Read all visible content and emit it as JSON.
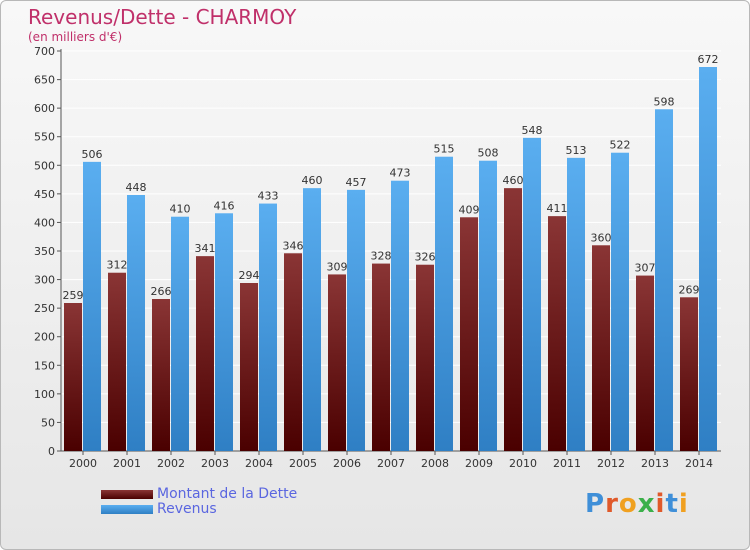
{
  "title": "Revenus/Dette - CHARMOY",
  "subtitle": "(en milliers d'€)",
  "logo": {
    "letters": [
      {
        "ch": "P",
        "color": "#3f8fd8"
      },
      {
        "ch": "r",
        "color": "#e0592a"
      },
      {
        "ch": "o",
        "color": "#f0a020"
      },
      {
        "ch": "x",
        "color": "#3bb04a"
      },
      {
        "ch": "i",
        "color": "#e0592a"
      },
      {
        "ch": "t",
        "color": "#3f8fd8"
      },
      {
        "ch": "i",
        "color": "#f0a020"
      }
    ]
  },
  "colors": {
    "dette_top": "#8a3535",
    "dette_bottom": "#4a0000",
    "revenus_top": "#5aaef0",
    "revenus_bottom": "#2f7fc4",
    "grid": "#ffffff",
    "axis": "#555555"
  },
  "chart_data": {
    "type": "bar",
    "categories": [
      "2000",
      "2001",
      "2002",
      "2003",
      "2004",
      "2005",
      "2006",
      "2007",
      "2008",
      "2009",
      "2010",
      "2011",
      "2012",
      "2013",
      "2014"
    ],
    "series": [
      {
        "name": "Montant de la Dette",
        "values": [
          259,
          312,
          266,
          341,
          294,
          346,
          309,
          328,
          326,
          409,
          460,
          411,
          360,
          307,
          269
        ]
      },
      {
        "name": "Revenus",
        "values": [
          506,
          448,
          410,
          416,
          433,
          460,
          457,
          473,
          515,
          508,
          548,
          513,
          522,
          598,
          672
        ]
      }
    ],
    "yticks": [
      0,
      50,
      100,
      150,
      200,
      250,
      300,
      350,
      400,
      450,
      500,
      550,
      600,
      650,
      700
    ],
    "ylim": [
      0,
      700
    ],
    "grid": true,
    "legend_position": "bottom-left"
  }
}
